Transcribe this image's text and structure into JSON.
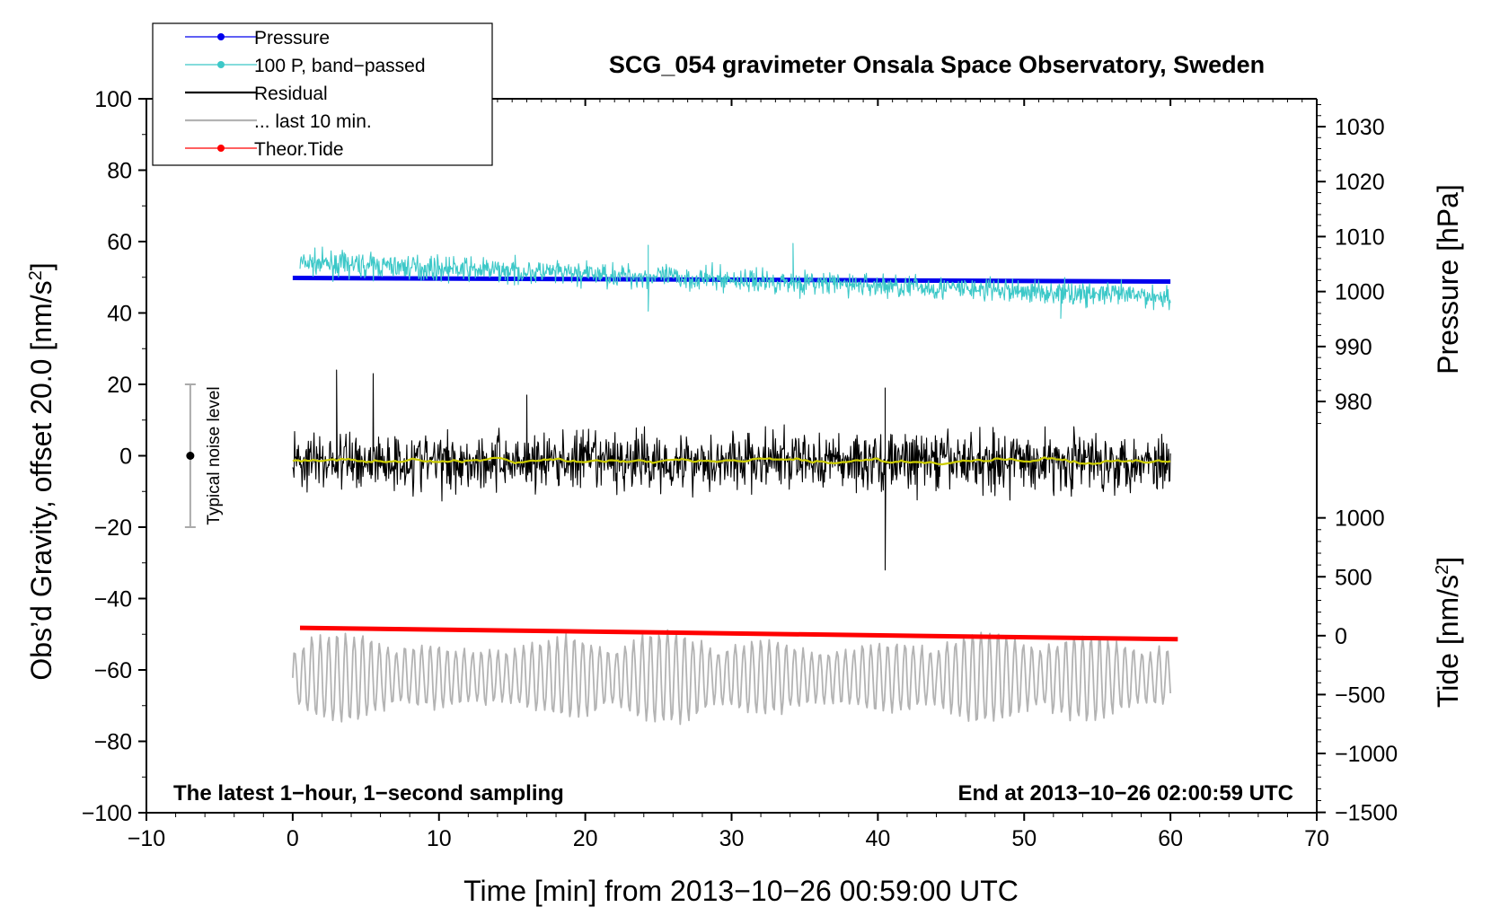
{
  "chart_data": {
    "type": "line",
    "title": "SCG_054 gravimeter Onsala Space Observatory, Sweden",
    "xlabel": "Time [min] from 2013−10−26 00:59:00 UTC",
    "ylabel_left": "Obs’d Gravity, offset 20.0 [nm/s",
    "ylabel_left_sup": "2",
    "ylabel_left_tail": "]",
    "ylabel_right_pressure": "Pressure [hPa]",
    "ylabel_right_tide": "Tide [nm/s",
    "ylabel_right_tide_sup": "2",
    "ylabel_right_tide_tail": "]",
    "xlim": [
      -10,
      70
    ],
    "ylim_left": [
      -100,
      100
    ],
    "x_ticks": [
      {
        "value": -10,
        "label": "−10"
      },
      {
        "value": 0,
        "label": "0"
      },
      {
        "value": 10,
        "label": "10"
      },
      {
        "value": 20,
        "label": "20"
      },
      {
        "value": 30,
        "label": "30"
      },
      {
        "value": 40,
        "label": "40"
      },
      {
        "value": 50,
        "label": "50"
      },
      {
        "value": 60,
        "label": "60"
      },
      {
        "value": 70,
        "label": "70"
      }
    ],
    "y_ticks_left": [
      {
        "value": 100,
        "label": "100"
      },
      {
        "value": 80,
        "label": "80"
      },
      {
        "value": 60,
        "label": "60"
      },
      {
        "value": 40,
        "label": "40"
      },
      {
        "value": 20,
        "label": "20"
      },
      {
        "value": 0,
        "label": "0"
      },
      {
        "value": -20,
        "label": "−20"
      },
      {
        "value": -40,
        "label": "−40"
      },
      {
        "value": -60,
        "label": "−60"
      },
      {
        "value": -80,
        "label": "−80"
      },
      {
        "value": -100,
        "label": "−100"
      }
    ],
    "pressure_axis": {
      "ticks": [
        {
          "value": 1030,
          "label": "1030"
        },
        {
          "value": 1020,
          "label": "1020"
        },
        {
          "value": 1010,
          "label": "1010"
        },
        {
          "value": 1000,
          "label": "1000"
        },
        {
          "value": 990,
          "label": "990"
        },
        {
          "value": 980,
          "label": "980"
        }
      ],
      "gravity_at_1000": 46.0,
      "gravity_per_hpa": 1.54
    },
    "tide_axis": {
      "ticks": [
        {
          "value": 1000,
          "label": "1000"
        },
        {
          "value": 500,
          "label": "500"
        },
        {
          "value": 0,
          "label": "0"
        },
        {
          "value": -500,
          "label": "−500"
        },
        {
          "value": -1000,
          "label": "−1000"
        },
        {
          "value": -1500,
          "label": "−1500"
        }
      ],
      "gravity_at_0": -50.4,
      "gravity_per_unit": 0.033
    },
    "series": [
      {
        "name": "Pressure",
        "color": "#0000ee",
        "style": "thick",
        "x_range": [
          0,
          60
        ],
        "values_start": 49.8,
        "values_end": 48.8
      },
      {
        "name": "100 P, band−passed",
        "color": "#3cc8c8",
        "style": "noisy",
        "x_range": [
          0.5,
          60
        ],
        "values_start": 54.0,
        "values_end": 44.5,
        "noise_amplitude": 4,
        "spikes": [
          {
            "x": 24.3,
            "values": [
              40.5,
              59.0
            ]
          },
          {
            "x": 34.2,
            "values": [
              59.5
            ]
          },
          {
            "x": 52.5,
            "values": [
              38.5
            ]
          }
        ]
      },
      {
        "name": "Residual",
        "color": "#000000",
        "style": "noisy",
        "x_range": [
          0,
          60
        ],
        "values_start": -1.5,
        "values_end": -1.5,
        "noise_amplitude": 10,
        "spikes": [
          {
            "x": 3.0,
            "values": [
              24.0
            ]
          },
          {
            "x": 5.5,
            "values": [
              23.0
            ]
          },
          {
            "x": 16.0,
            "values": [
              17.0
            ]
          },
          {
            "x": 40.5,
            "values": [
              -32.0,
              19.0
            ]
          }
        ]
      },
      {
        "name": "... last 10 min.",
        "color": "#b3b3b3",
        "style": "oscillating",
        "x_range": [
          0,
          60
        ],
        "values_start": -62,
        "values_end": -62,
        "noise_amplitude": 10
      },
      {
        "name": "Theor.Tide",
        "color": "#ff0000",
        "style": "thick",
        "x_range": [
          0.5,
          60.5
        ],
        "values_start": -48.2,
        "values_end": -51.4
      },
      {
        "name": "smoothed residual",
        "color": "#cccc00",
        "style": "smooth",
        "x_range": [
          0,
          60
        ],
        "values_start": -1.5,
        "values_end": -1.5,
        "noise_amplitude": 1.5
      }
    ],
    "legend": [
      {
        "label": "Pressure",
        "color": "#0000ee",
        "marker": true
      },
      {
        "label": "100 P, band−passed",
        "color": "#3cc8c8",
        "marker": true
      },
      {
        "label": "Residual",
        "color": "#000000",
        "marker": false
      },
      {
        "label": "... last 10 min.",
        "color": "#b3b3b3",
        "marker": false
      },
      {
        "label": "Theor.Tide",
        "color": "#ff0000",
        "marker": true
      }
    ],
    "legend_position": "top-left",
    "noise_bar": {
      "label": "Typical noise level",
      "x": -7,
      "y_center": 0,
      "y_low": -20,
      "y_high": 20
    },
    "annotations": {
      "bottom_left": "The latest 1−hour, 1−second sampling",
      "bottom_right": "End at 2013−10−26 02:00:59 UTC"
    }
  }
}
